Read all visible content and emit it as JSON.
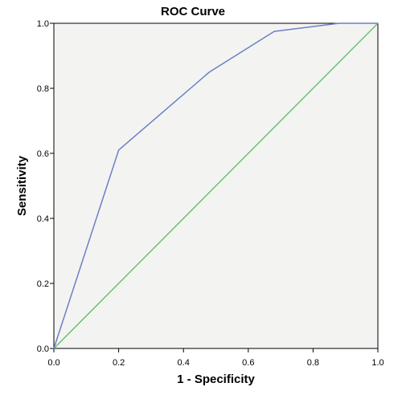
{
  "chart_data": {
    "type": "line",
    "title": "ROC Curve",
    "xlabel": "1 - Specificity",
    "ylabel": "Sensitivity",
    "xlim": [
      0,
      1
    ],
    "ylim": [
      0,
      1
    ],
    "x_ticks": [
      "0.0",
      "0.2",
      "0.4",
      "0.6",
      "0.8",
      "1.0"
    ],
    "y_ticks": [
      "0.0",
      "0.2",
      "0.4",
      "0.6",
      "0.8",
      "1.0"
    ],
    "grid": false,
    "background": "#f3f4f2",
    "series": [
      {
        "color": "#6b7fc4",
        "points": [
          {
            "x": 0.0,
            "y": 0.0
          },
          {
            "x": 0.2,
            "y": 0.61
          },
          {
            "x": 0.48,
            "y": 0.85
          },
          {
            "x": 0.68,
            "y": 0.975
          },
          {
            "x": 0.88,
            "y": 1.0
          },
          {
            "x": 1.0,
            "y": 1.0
          }
        ]
      },
      {
        "color": "#6cc26e",
        "points": [
          {
            "x": 0.0,
            "y": 0.0
          },
          {
            "x": 1.0,
            "y": 1.0
          }
        ]
      }
    ]
  }
}
